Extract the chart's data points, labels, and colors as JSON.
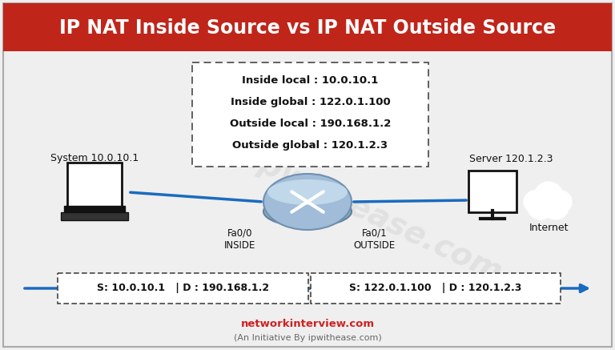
{
  "title": "IP NAT Inside Source vs IP NAT Outside Source",
  "title_bg": "#c0251a",
  "title_color": "#ffffff",
  "bg_color": "#efefef",
  "info_box": {
    "lines": [
      "Inside local : 10.0.10.1",
      "Inside global : 122.0.1.100",
      "Outside local : 190.168.1.2",
      "Outside global : 120.1.2.3"
    ]
  },
  "system_label": "System 10.0.10.1",
  "server_label": "Server 120.1.2.3",
  "fa0_0_label": "Fa0/0\nINSIDE",
  "fa0_1_label": "Fa0/1\nOUTSIDE",
  "internet_label": "Internet",
  "packet_left": "S: 10.0.10.1   | D : 190.168.1.2",
  "packet_right": "S: 122.0.1.100   | D : 120.1.2.3",
  "footer1": "networkinterview.com",
  "footer2": "(An Initiative By ipwithease.com)",
  "footer1_color": "#cc2222",
  "footer2_color": "#666666",
  "arrow_color": "#1a6bbf",
  "watermark": "ipwithease.com",
  "watermark_color": "#cccccc",
  "router_color": "#a0bcd8",
  "router_edge": "#7090b0"
}
